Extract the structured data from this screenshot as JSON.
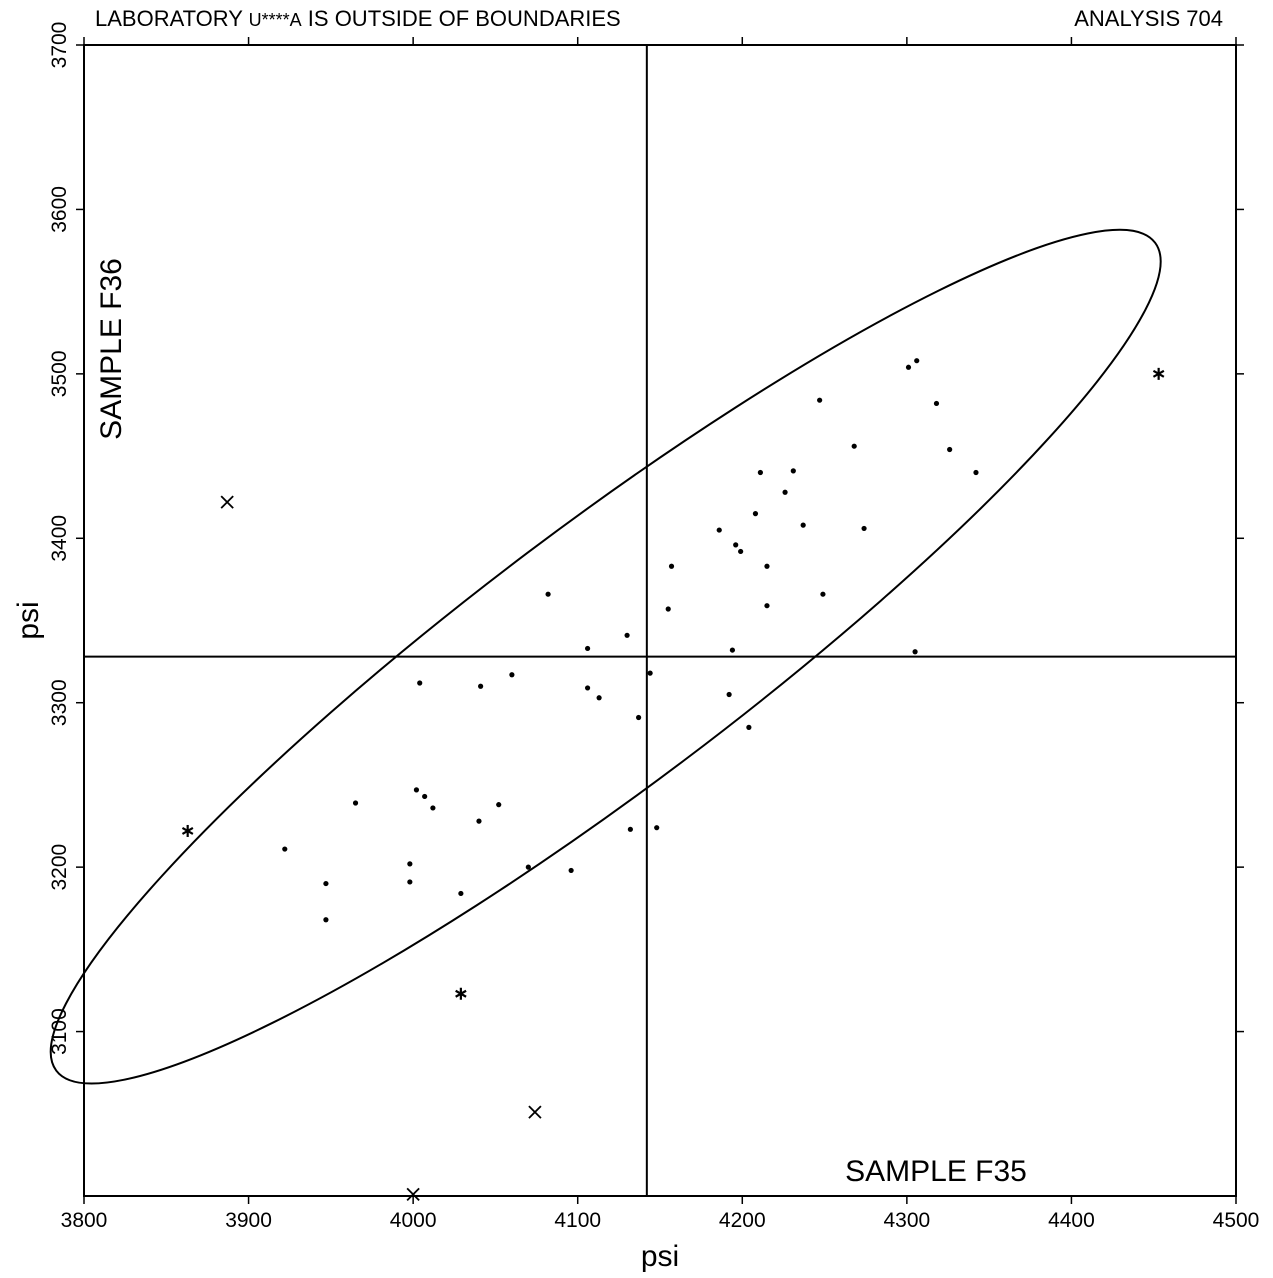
{
  "header": {
    "left_pre": "LABORATORY ",
    "lab_id": "U****A",
    "left_post": " IS OUTSIDE OF BOUNDARIES",
    "right": "ANALYSIS 704"
  },
  "chart_data": {
    "type": "scatter",
    "title": "",
    "xlabel": "psi",
    "ylabel": "psi",
    "x_sample_label": "SAMPLE F35",
    "y_sample_label": "SAMPLE F36",
    "xlim": [
      3800,
      4500
    ],
    "ylim": [
      3000,
      3700
    ],
    "xticks": [
      3800,
      3900,
      4000,
      4100,
      4200,
      4300,
      4400,
      4500
    ],
    "yticks": [
      3100,
      3200,
      3300,
      3400,
      3500,
      3600,
      3700
    ],
    "grid": false,
    "median_x": 4142,
    "median_y": 3328,
    "ellipse": {
      "center": [
        4117,
        3328
      ],
      "semi_major_psi": 418,
      "semi_minor_psi": 79,
      "angle_deg": 37.0
    },
    "series": [
      {
        "marker": "dot",
        "points": [
          [
            4301,
            3504
          ],
          [
            4306,
            3508
          ],
          [
            4318,
            3482
          ],
          [
            4326,
            3454
          ],
          [
            4342,
            3440
          ],
          [
            4247,
            3484
          ],
          [
            4268,
            3456
          ],
          [
            4231,
            3441
          ],
          [
            4211,
            3440
          ],
          [
            4226,
            3428
          ],
          [
            4208,
            3415
          ],
          [
            4186,
            3405
          ],
          [
            4237,
            3408
          ],
          [
            4274,
            3406
          ],
          [
            4196,
            3396
          ],
          [
            4199,
            3392
          ],
          [
            4215,
            3383
          ],
          [
            4157,
            3383
          ],
          [
            4249,
            3366
          ],
          [
            4215,
            3359
          ],
          [
            4155,
            3357
          ],
          [
            4082,
            3366
          ],
          [
            4130,
            3341
          ],
          [
            4106,
            3333
          ],
          [
            4194,
            3332
          ],
          [
            4305,
            3331
          ],
          [
            4144,
            3318
          ],
          [
            4060,
            3317
          ],
          [
            4004,
            3312
          ],
          [
            4041,
            3310
          ],
          [
            4106,
            3309
          ],
          [
            4113,
            3303
          ],
          [
            4192,
            3305
          ],
          [
            4137,
            3291
          ],
          [
            4204,
            3285
          ],
          [
            4002,
            3247
          ],
          [
            4007,
            3243
          ],
          [
            4012,
            3236
          ],
          [
            3965,
            3239
          ],
          [
            4052,
            3238
          ],
          [
            4040,
            3228
          ],
          [
            4132,
            3223
          ],
          [
            4148,
            3224
          ],
          [
            3922,
            3211
          ],
          [
            3998,
            3202
          ],
          [
            4070,
            3200
          ],
          [
            4096,
            3198
          ],
          [
            3947,
            3190
          ],
          [
            3998,
            3191
          ],
          [
            4029,
            3184
          ],
          [
            3947,
            3168
          ]
        ]
      },
      {
        "marker": "asterisk",
        "points": [
          [
            4453,
            3500
          ],
          [
            3863,
            3222
          ],
          [
            4029,
            3123
          ]
        ]
      },
      {
        "marker": "cross",
        "points": [
          [
            3887,
            3422
          ],
          [
            4074,
            3051
          ],
          [
            4000,
            3001
          ]
        ]
      }
    ]
  }
}
